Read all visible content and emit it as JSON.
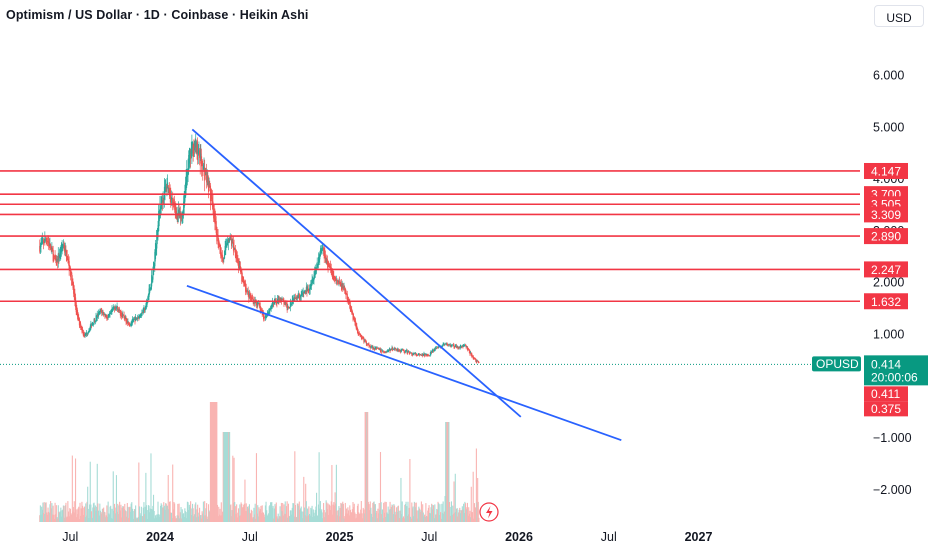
{
  "header": {
    "title": "Optimism / US Dollar · 1D · Coinbase · Heikin Ashi",
    "currency_button": "USD"
  },
  "colors": {
    "up": "#26a69a",
    "down": "#ef5350",
    "level_line": "#f23645",
    "trend_line": "#2962ff",
    "price_tag": "#089981",
    "axis_text": "#131722"
  },
  "chart_data": {
    "type": "candlestick",
    "symbol": "OPUSD",
    "title": "Optimism / US Dollar · 1D · Coinbase · Heikin Ashi",
    "x_ticks": [
      "Jul",
      "2024",
      "Jul",
      "2025",
      "Jul",
      "2026",
      "Jul",
      "2027"
    ],
    "y_ticks": [
      "6.000",
      "5.000",
      "4.000",
      "3.000",
      "2.000",
      "1.000",
      "−1.000",
      "−2.000"
    ],
    "y_tick_values": [
      6,
      5,
      4,
      3,
      2,
      1,
      -1,
      -2
    ],
    "ylim": [
      -2.8,
      6.6
    ],
    "xlim": [
      2023.33,
      2027.33
    ],
    "grid": false,
    "horizontal_levels": [
      "4.147",
      "3.700",
      "3.505",
      "3.309",
      "2.890",
      "2.247",
      "1.632"
    ],
    "horizontal_level_values": [
      4.147,
      3.7,
      3.505,
      3.309,
      2.89,
      2.247,
      1.632
    ],
    "current_price": {
      "label": "OPUSD",
      "value": "0.414",
      "value_num": 0.414,
      "countdown": "20:00:06"
    },
    "price_tags_low": [
      "0.411",
      "0.375"
    ],
    "price_tags_low_values": [
      0.411,
      0.375
    ],
    "price_path": [
      [
        2023.33,
        2.7
      ],
      [
        2023.37,
        2.85
      ],
      [
        2023.42,
        2.35
      ],
      [
        2023.46,
        2.75
      ],
      [
        2023.5,
        2.2
      ],
      [
        2023.54,
        1.3
      ],
      [
        2023.58,
        0.95
      ],
      [
        2023.62,
        1.2
      ],
      [
        2023.67,
        1.45
      ],
      [
        2023.71,
        1.3
      ],
      [
        2023.75,
        1.55
      ],
      [
        2023.79,
        1.35
      ],
      [
        2023.83,
        1.2
      ],
      [
        2023.87,
        1.3
      ],
      [
        2023.92,
        1.5
      ],
      [
        2023.96,
        2.2
      ],
      [
        2024.0,
        3.5
      ],
      [
        2024.04,
        3.9
      ],
      [
        2024.08,
        3.4
      ],
      [
        2024.12,
        3.2
      ],
      [
        2024.15,
        4.2
      ],
      [
        2024.19,
        4.7
      ],
      [
        2024.23,
        4.3
      ],
      [
        2024.27,
        3.9
      ],
      [
        2024.31,
        3.0
      ],
      [
        2024.35,
        2.4
      ],
      [
        2024.38,
        2.9
      ],
      [
        2024.42,
        2.6
      ],
      [
        2024.46,
        2.0
      ],
      [
        2024.5,
        1.7
      ],
      [
        2024.54,
        1.6
      ],
      [
        2024.58,
        1.3
      ],
      [
        2024.62,
        1.55
      ],
      [
        2024.67,
        1.7
      ],
      [
        2024.71,
        1.5
      ],
      [
        2024.75,
        1.75
      ],
      [
        2024.79,
        1.75
      ],
      [
        2024.83,
        1.9
      ],
      [
        2024.87,
        2.3
      ],
      [
        2024.9,
        2.7
      ],
      [
        2024.94,
        2.3
      ],
      [
        2024.98,
        2.0
      ],
      [
        2025.02,
        1.9
      ],
      [
        2025.06,
        1.5
      ],
      [
        2025.1,
        1.05
      ],
      [
        2025.15,
        0.8
      ],
      [
        2025.2,
        0.72
      ],
      [
        2025.25,
        0.65
      ],
      [
        2025.3,
        0.72
      ],
      [
        2025.35,
        0.68
      ],
      [
        2025.4,
        0.62
      ],
      [
        2025.45,
        0.58
      ],
      [
        2025.5,
        0.62
      ],
      [
        2025.55,
        0.75
      ],
      [
        2025.6,
        0.8
      ],
      [
        2025.65,
        0.74
      ],
      [
        2025.7,
        0.78
      ],
      [
        2025.74,
        0.55
      ],
      [
        2025.78,
        0.42
      ]
    ],
    "trend_lines": [
      {
        "from": [
          2024.18,
          4.95
        ],
        "to": [
          2026.01,
          -0.6
        ]
      },
      {
        "from": [
          2024.15,
          1.93
        ],
        "to": [
          2026.57,
          -1.05
        ]
      }
    ]
  }
}
